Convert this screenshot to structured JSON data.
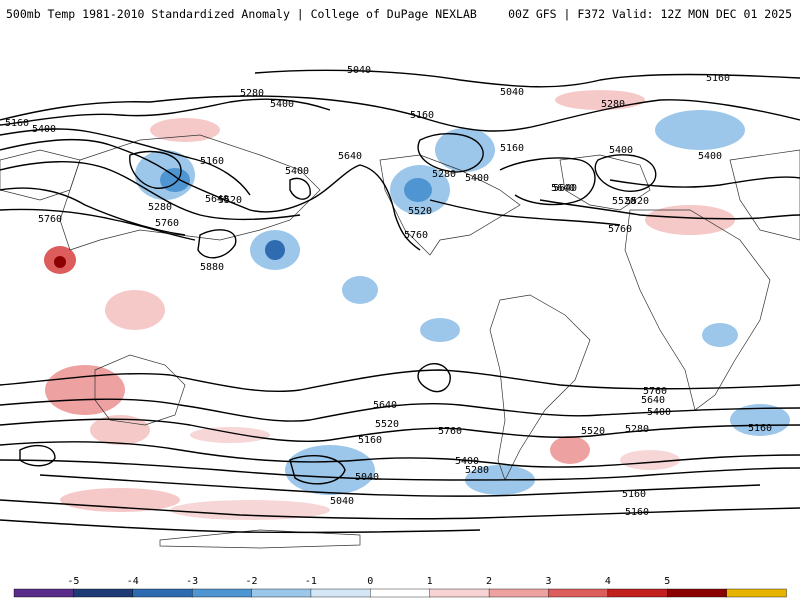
{
  "header": {
    "title_left": "500mb Temp 1981-2010 Standardized Anomaly | College of DuPage NEXLAB",
    "title_right": "00Z GFS | F372 Valid: 12Z MON DEC 01 2025"
  },
  "map": {
    "contour_labels": [
      "5040",
      "5160",
      "5280",
      "5400",
      "5520",
      "5640",
      "5760",
      "5880",
      "5160",
      "5400",
      "5280",
      "5160",
      "5400",
      "5520",
      "5640",
      "5760",
      "5040",
      "5160",
      "5280",
      "5400",
      "5520",
      "5640",
      "5760",
      "5160",
      "5400",
      "5280",
      "5400",
      "5520",
      "5640",
      "5760",
      "5160",
      "5280",
      "5400",
      "5520",
      "5640",
      "5760",
      "5760",
      "5640",
      "5520",
      "5400",
      "5280",
      "5160",
      "5040",
      "5160",
      "5160",
      "5040"
    ]
  },
  "legend": {
    "ticks": [
      "-5",
      "-4",
      "-3",
      "-2",
      "-1",
      "0",
      "1",
      "2",
      "3",
      "4",
      "5"
    ],
    "colors": [
      "#5a2c8a",
      "#1f3b73",
      "#2e6bb0",
      "#4f95d1",
      "#9cc7ea",
      "#d5e7f6",
      "#ffffff",
      "#f8d3d3",
      "#eea1a1",
      "#dd5c5c",
      "#c21f1f",
      "#8b0000",
      "#e6b400"
    ]
  }
}
